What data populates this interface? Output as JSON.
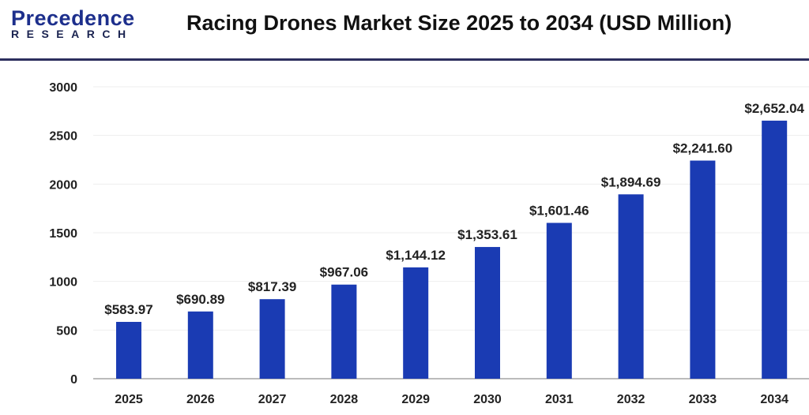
{
  "logo": {
    "main": "Precedence",
    "sub": "RESEARCH"
  },
  "chart_data": {
    "type": "bar",
    "title": "Racing Drones Market Size 2025 to 2034 (USD Million)",
    "categories": [
      "2025",
      "2026",
      "2027",
      "2028",
      "2029",
      "2030",
      "2031",
      "2032",
      "2033",
      "2034"
    ],
    "values": [
      583.97,
      690.89,
      817.39,
      967.06,
      1144.12,
      1353.61,
      1601.46,
      1894.69,
      2241.6,
      2652.04
    ],
    "data_labels": [
      "$583.97",
      "$690.89",
      "$817.39",
      "$967.06",
      "$1,144.12",
      "$1,353.61",
      "$1,601.46",
      "$1,894.69",
      "$2,241.60",
      "$2,652.04"
    ],
    "yticks": [
      0,
      500,
      1000,
      1500,
      2000,
      2500,
      3000
    ],
    "ylim": [
      0,
      3000
    ],
    "grid": true,
    "bar_color": "#1a3bb3",
    "xlabel": "",
    "ylabel": ""
  }
}
